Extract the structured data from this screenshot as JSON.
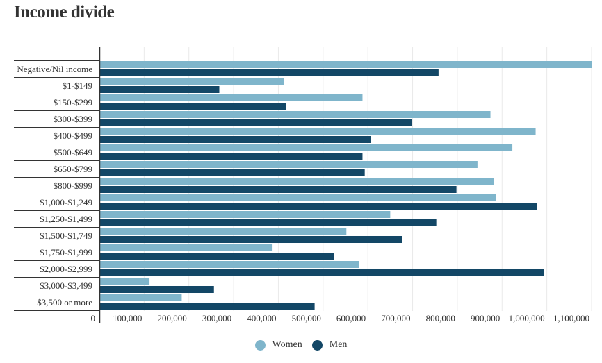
{
  "chart_data": {
    "type": "bar",
    "orientation": "horizontal",
    "title": "Income divide",
    "categories": [
      "Negative/Nil income",
      "$1-$149",
      "$150-$299",
      "$300-$399",
      "$400-$499",
      "$500-$649",
      "$650-$799",
      "$800-$999",
      "$1,000-$1,249",
      "$1,250-$1,499",
      "$1,500-$1,749",
      "$1,750-$1,999",
      "$2,000-$2,999",
      "$3,000-$3,499",
      "$3,500 or more"
    ],
    "series": [
      {
        "name": "Women",
        "color": "#7fb5cb",
        "values": [
          1100000,
          412000,
          588000,
          874000,
          975000,
          923000,
          845000,
          881000,
          887000,
          650000,
          552000,
          387000,
          580000,
          112000,
          184000
        ]
      },
      {
        "name": "Men",
        "color": "#134766",
        "values": [
          758000,
          268000,
          417000,
          699000,
          606000,
          588000,
          593000,
          798000,
          978000,
          753000,
          677000,
          524000,
          993000,
          256000,
          481000
        ]
      }
    ],
    "xlim": [
      0,
      1100000
    ],
    "xticks": [
      0,
      100000,
      200000,
      300000,
      400000,
      500000,
      600000,
      700000,
      800000,
      900000,
      1000000,
      1100000
    ],
    "xtick_labels": [
      "0",
      "100,000",
      "200,000",
      "300,000",
      "400,000",
      "500,000",
      "600,000",
      "700,000",
      "800,000",
      "900,000",
      "1,000,000",
      "1,100,000"
    ],
    "grid": true,
    "legend": "bottom-center"
  }
}
